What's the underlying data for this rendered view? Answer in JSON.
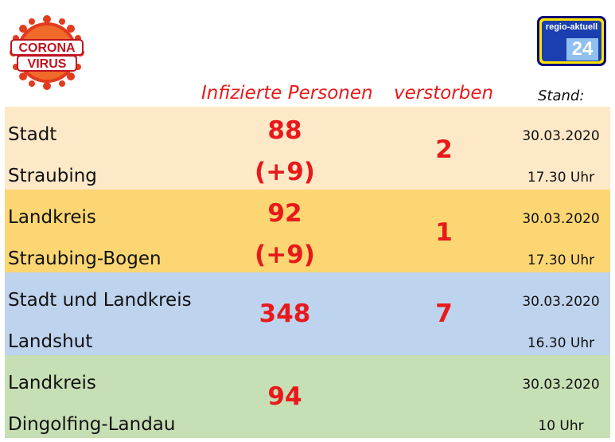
{
  "logos": {
    "corona_text": [
      "CORONA",
      "VIRUS"
    ],
    "regio_brand": "regio-aktuell",
    "regio_number": "24"
  },
  "header": {
    "infected": "Infizierte Personen",
    "deceased": "verstorben",
    "stand": "Stand:"
  },
  "rows": [
    {
      "name_line1": "Stadt",
      "name_line2": "Straubing",
      "infected": "88",
      "change": "(+9)",
      "deceased": "2",
      "date": "30.03.2020",
      "time": "17.30 Uhr"
    },
    {
      "name_line1": "Landkreis",
      "name_line2": "Straubing-Bogen",
      "infected": "92",
      "change": "(+9)",
      "deceased": "1",
      "date": "30.03.2020",
      "time": "17.30 Uhr"
    },
    {
      "name_line1": "Stadt und Landkreis",
      "name_line2": "Landshut",
      "infected": "348",
      "change": "",
      "deceased": "7",
      "date": "30.03.2020",
      "time": "16.30 Uhr"
    },
    {
      "name_line1": "Landkreis",
      "name_line2": "Dingolfing-Landau",
      "infected": "94",
      "change": "",
      "deceased": "",
      "date": "30.03.2020",
      "time": "10 Uhr"
    }
  ],
  "colors": {
    "accent_red": "#e8191b",
    "row1_bg": "#fde9c8",
    "row2_bg": "#fcd672",
    "row3_bg": "#bed3ed",
    "row4_bg": "#c6dfb4"
  }
}
